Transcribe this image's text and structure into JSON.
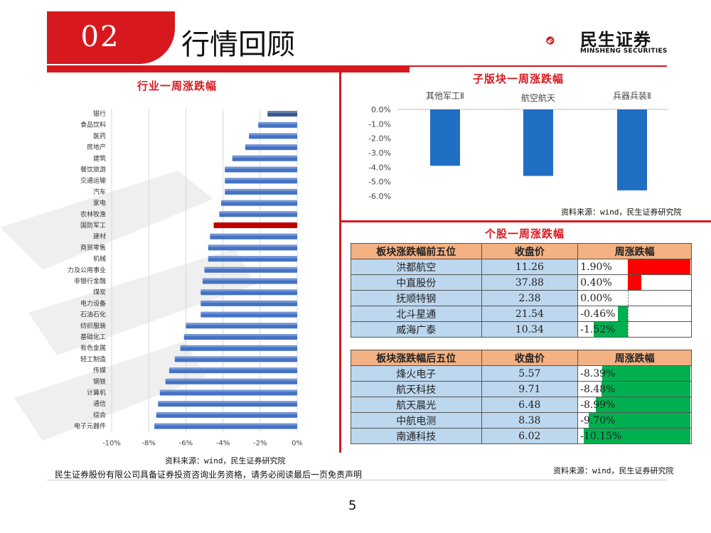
{
  "header": {
    "number": "02",
    "title": "行情回顾"
  },
  "logo": {
    "name": "民生证券",
    "sub": "MINSHENG SECURITIES"
  },
  "colors": {
    "accent": "#d7191f",
    "bar_blue": "#4472c4",
    "bar_highlight": "#c00000",
    "up": "#ff0000",
    "down": "#00b050"
  },
  "industry": {
    "title": "行业一周涨跌幅",
    "source": "资料来源：wind，民生证券研究院"
  },
  "subsector": {
    "title": "子版块一周涨跌幅",
    "source": "资料来源：wind，民生证券研究院"
  },
  "stocks": {
    "title": "个股一周涨跌幅",
    "source": "资料来源：wind，民生证券研究院",
    "top": {
      "headers": [
        "板块涨跌幅前五位",
        "收盘价",
        "周涨跌幅"
      ],
      "rows": [
        {
          "name": "洪都航空",
          "price": "11.26",
          "change": "1.90%",
          "value": 1.9
        },
        {
          "name": "中直股份",
          "price": "37.88",
          "change": "0.40%",
          "value": 0.4
        },
        {
          "name": "抚顺特钢",
          "price": "2.38",
          "change": "0.00%",
          "value": 0.0
        },
        {
          "name": "北斗星通",
          "price": "21.54",
          "change": "-0.46%",
          "value": -0.46
        },
        {
          "name": "威海广泰",
          "price": "10.34",
          "change": "-1.52%",
          "value": -1.52
        }
      ]
    },
    "bottom": {
      "headers": [
        "板块涨跌幅后五位",
        "收盘价",
        "周涨跌幅"
      ],
      "rows": [
        {
          "name": "烽火电子",
          "price": "5.57",
          "change": "-8.39%",
          "value": -8.39
        },
        {
          "name": "航天科技",
          "price": "9.71",
          "change": "-8.48%",
          "value": -8.48
        },
        {
          "name": "航天晨光",
          "price": "6.48",
          "change": "-8.99%",
          "value": -8.99
        },
        {
          "name": "中航电测",
          "price": "8.38",
          "change": "-9.70%",
          "value": -9.7
        },
        {
          "name": "南通科技",
          "price": "6.02",
          "change": "-10.15%",
          "value": -10.15
        }
      ]
    }
  },
  "footer": {
    "note": "民生证券股份有限公司具备证券投资咨询业务资格，请务必阅读最后一页免责声明",
    "page": "5"
  },
  "chart_data": [
    {
      "type": "bar",
      "orientation": "horizontal",
      "title": "行业一周涨跌幅",
      "categories": [
        "银行",
        "食品饮料",
        "医药",
        "房地产",
        "建筑",
        "餐饮旅游",
        "交通运输",
        "汽车",
        "家电",
        "农林牧渔",
        "国防军工",
        "建材",
        "商贸零售",
        "机械",
        "电力及公用事业",
        "非银行金融",
        "煤炭",
        "电力设备",
        "石油石化",
        "纺织服装",
        "基础化工",
        "有色金属",
        "轻工制造",
        "传媒",
        "钢铁",
        "计算机",
        "通信",
        "综合",
        "电子元器件"
      ],
      "values": [
        -1.6,
        -2.1,
        -2.6,
        -2.8,
        -3.5,
        -3.9,
        -3.9,
        -3.9,
        -4.1,
        -4.2,
        -4.5,
        -4.7,
        -4.8,
        -4.8,
        -5.0,
        -5.1,
        -5.2,
        -5.2,
        -5.2,
        -6.0,
        -6.1,
        -6.3,
        -6.6,
        -6.9,
        -7.1,
        -7.4,
        -7.5,
        -7.6,
        -7.7
      ],
      "highlight": "国防军工",
      "xlim": [
        -10,
        0
      ],
      "xticks": [
        "-10%",
        "-8%",
        "-6%",
        "-4%",
        "-2%",
        "0%"
      ],
      "tick_values": [
        -10,
        -8,
        -6,
        -4,
        -2,
        0
      ]
    },
    {
      "type": "bar",
      "title": "子版块一周涨跌幅",
      "categories": [
        "其他军工Ⅱ",
        "航空航天",
        "兵器兵装Ⅱ"
      ],
      "values": [
        -3.9,
        -4.6,
        -5.6
      ],
      "ylim": [
        -6,
        0
      ],
      "yticks": [
        "0.0%",
        "-1.0%",
        "-2.0%",
        "-3.0%",
        "-4.0%",
        "-5.0%",
        "-6.0%"
      ],
      "tick_values": [
        0,
        -1,
        -2,
        -3,
        -4,
        -5,
        -6
      ]
    }
  ]
}
